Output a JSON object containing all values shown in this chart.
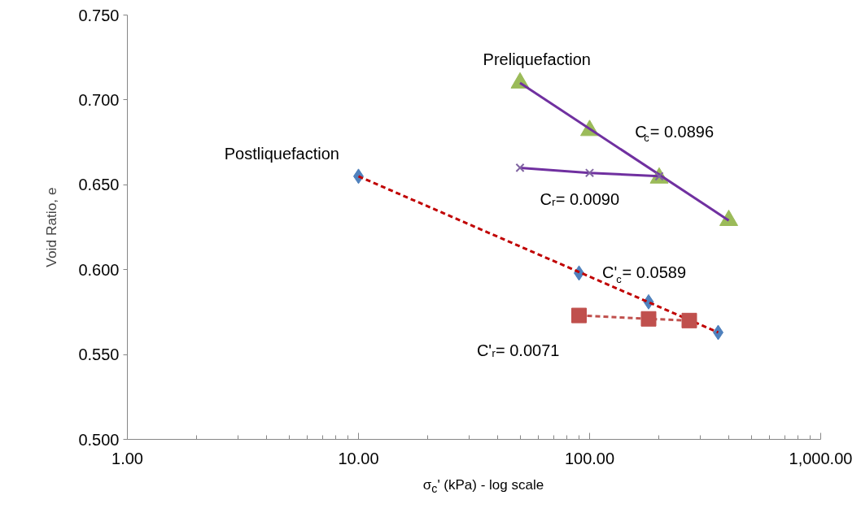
{
  "chart_data": {
    "type": "scatter",
    "xlabel": "σ$_{c}$' (kPa) - log scale",
    "ylabel": "Void Ratio, e",
    "log": "x",
    "grid": false,
    "xlim": [
      1,
      1000
    ],
    "ylim": [
      0.5,
      0.75
    ],
    "xticks": [
      {
        "value": 1,
        "label": "1.00"
      },
      {
        "value": 10,
        "label": "10.00"
      },
      {
        "value": 100,
        "label": "100.00"
      },
      {
        "value": 1000,
        "label": "1,000.00"
      }
    ],
    "yticks": [
      {
        "value": 0.5,
        "label": "0.500"
      },
      {
        "value": 0.55,
        "label": "0.550"
      },
      {
        "value": 0.6,
        "label": "0.600"
      },
      {
        "value": 0.65,
        "label": "0.650"
      },
      {
        "value": 0.7,
        "label": "0.700"
      },
      {
        "value": 0.75,
        "label": "0.750"
      }
    ],
    "series": [
      {
        "marker": "triangle",
        "color": "#9bbb59",
        "x": [
          50,
          100,
          200,
          400
        ],
        "values": [
          0.71,
          0.682,
          0.654,
          0.629
        ]
      },
      {
        "type": "line",
        "marker": "none",
        "line_style": "solid",
        "color": "#7030a0",
        "x": [
          50,
          400
        ],
        "values": [
          0.71,
          0.629
        ]
      },
      {
        "type": "line",
        "marker": "cross",
        "line_style": "solid",
        "color": "#7030a0",
        "x": [
          50,
          100,
          200
        ],
        "values": [
          0.66,
          0.657,
          0.655
        ]
      },
      {
        "marker": "diamond",
        "color": "#4f81bd",
        "x": [
          10,
          90,
          180,
          360
        ],
        "values": [
          0.655,
          0.598,
          0.581,
          0.563
        ]
      },
      {
        "type": "line",
        "marker": "none",
        "line_style": "dashed",
        "color": "#c00000",
        "x": [
          10,
          360
        ],
        "values": [
          0.655,
          0.563
        ]
      },
      {
        "type": "line",
        "marker": "square",
        "line_style": "dashed",
        "color": "#c0504d",
        "x": [
          90,
          180,
          270
        ],
        "values": [
          0.573,
          0.571,
          0.57
        ]
      }
    ],
    "annotations": [
      "Preliquefaction",
      "Postliquefaction",
      "C$_{c}$= 0.0896",
      "Cᵣ= 0.0090",
      "C'$_{c}$= 0.0589",
      "C'ᵣ= 0.0071"
    ]
  }
}
